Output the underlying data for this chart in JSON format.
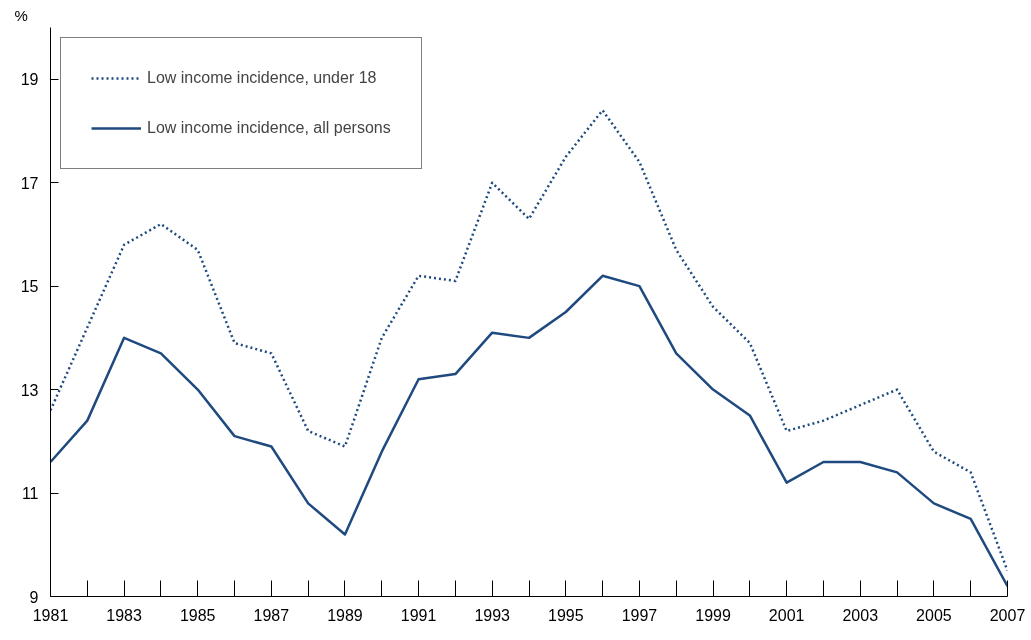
{
  "chart_data": {
    "type": "line",
    "ylabel": "%",
    "x": [
      1981,
      1982,
      1983,
      1984,
      1985,
      1986,
      1987,
      1988,
      1989,
      1990,
      1991,
      1992,
      1993,
      1994,
      1995,
      1996,
      1997,
      1998,
      1999,
      2000,
      2001,
      2002,
      2003,
      2004,
      2005,
      2006,
      2007
    ],
    "series": [
      {
        "name": "Low income incidence, under 18",
        "color": "#1f4a7f",
        "line_style": "dotted",
        "values": [
          12.6,
          14.2,
          15.8,
          16.2,
          15.7,
          13.9,
          13.7,
          12.2,
          11.9,
          14.0,
          15.2,
          15.1,
          17.0,
          16.3,
          17.5,
          18.4,
          17.4,
          15.7,
          14.6,
          13.9,
          12.2,
          12.4,
          12.7,
          13.0,
          11.8,
          11.4,
          9.5
        ]
      },
      {
        "name": "Low income incidence, all persons",
        "color": "#1f4a7f",
        "line_style": "solid",
        "values": [
          11.6,
          12.4,
          14.0,
          13.7,
          13.0,
          12.1,
          11.9,
          10.8,
          10.2,
          11.8,
          13.2,
          13.3,
          14.1,
          14.0,
          14.5,
          15.2,
          15.0,
          13.7,
          13.0,
          12.5,
          11.2,
          11.6,
          11.6,
          11.4,
          10.8,
          10.5,
          9.2
        ]
      }
    ],
    "xlim": [
      1981,
      2007
    ],
    "xticks": [
      1981,
      {
        "value": 1982,
        "label": null
      },
      1983,
      {
        "value": 1984,
        "label": null
      },
      1985,
      {
        "value": 1986,
        "label": null
      },
      1987,
      {
        "value": 1988,
        "label": null
      },
      1989,
      {
        "value": 1990,
        "label": null
      },
      1991,
      {
        "value": 1992,
        "label": null
      },
      1993,
      {
        "value": 1994,
        "label": null
      },
      1995,
      {
        "value": 1996,
        "label": null
      },
      1997,
      {
        "value": 1998,
        "label": null
      },
      1999,
      {
        "value": 2000,
        "label": null
      },
      2001,
      {
        "value": 2002,
        "label": null
      },
      2003,
      {
        "value": 2004,
        "label": null
      },
      2005,
      {
        "value": 2006,
        "label": null
      },
      2007
    ],
    "ylim": [
      9,
      20
    ],
    "yticks": [
      9,
      11,
      13,
      15,
      17,
      19
    ],
    "grid": false,
    "legend": "top left",
    "marker": "none"
  }
}
